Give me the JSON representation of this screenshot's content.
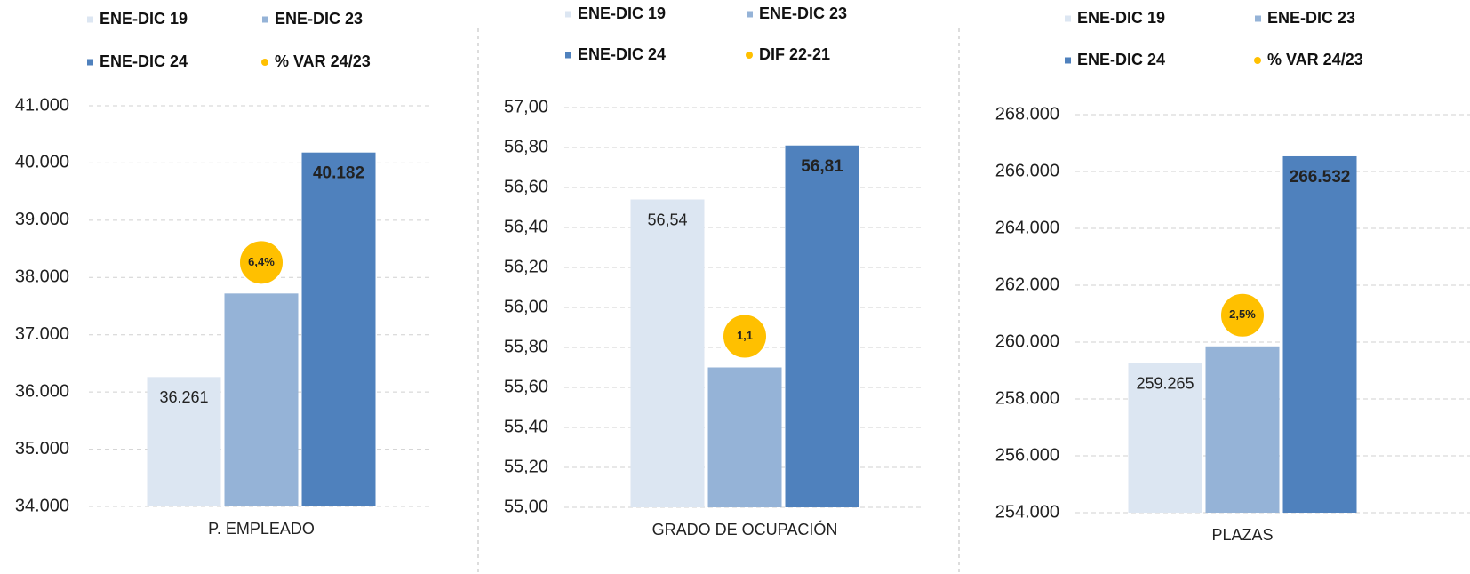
{
  "chart_data": [
    {
      "type": "bar",
      "categories": [
        "P. EMPLEADO"
      ],
      "series": [
        {
          "name": "ENE-DIC 19",
          "color": "#dce6f2",
          "values": [
            36261
          ],
          "value_labels": [
            "36.261"
          ]
        },
        {
          "name": "ENE-DIC 23",
          "color": "#95b3d7",
          "values": [
            37720
          ]
        },
        {
          "name": "ENE-DIC 24",
          "color": "#4f81bd",
          "values": [
            40182
          ],
          "value_labels": [
            "40.182"
          ]
        },
        {
          "name": "% VAR 24/23",
          "color": "#ffc000",
          "marker": "circle",
          "values": [
            6.4
          ],
          "value_labels": [
            "6,4%"
          ]
        }
      ],
      "ylim": [
        34000,
        41000
      ],
      "yticks": [
        {
          "value": 34000,
          "label": "34.000"
        },
        {
          "value": 35000,
          "label": "35.000"
        },
        {
          "value": 36000,
          "label": "36.000"
        },
        {
          "value": 37000,
          "label": "37.000"
        },
        {
          "value": 38000,
          "label": "38.000"
        },
        {
          "value": 39000,
          "label": "39.000"
        },
        {
          "value": 40000,
          "label": "40.000"
        },
        {
          "value": 41000,
          "label": "41.000"
        }
      ],
      "grid": true
    },
    {
      "type": "bar",
      "categories": [
        "GRADO DE OCUPACIÓN"
      ],
      "series": [
        {
          "name": "ENE-DIC 19",
          "color": "#dce6f2",
          "values": [
            56.54
          ],
          "value_labels": [
            "56,54"
          ]
        },
        {
          "name": "ENE-DIC 23",
          "color": "#95b3d7",
          "values": [
            55.7
          ]
        },
        {
          "name": "ENE-DIC 24",
          "color": "#4f81bd",
          "values": [
            56.81
          ],
          "value_labels": [
            "56,81"
          ]
        },
        {
          "name": "DIF 22-21",
          "color": "#ffc000",
          "marker": "circle",
          "values": [
            1.1
          ],
          "value_labels": [
            "1,1"
          ]
        }
      ],
      "ylim": [
        55,
        57
      ],
      "yticks": [
        {
          "value": 55,
          "label": "55,00"
        },
        {
          "value": 55.2,
          "label": "55,20"
        },
        {
          "value": 55.4,
          "label": "55,40"
        },
        {
          "value": 55.6,
          "label": "55,60"
        },
        {
          "value": 55.8,
          "label": "55,80"
        },
        {
          "value": 56,
          "label": "56,00"
        },
        {
          "value": 56.2,
          "label": "56,20"
        },
        {
          "value": 56.4,
          "label": "56,40"
        },
        {
          "value": 56.6,
          "label": "56,60"
        },
        {
          "value": 56.8,
          "label": "56,80"
        },
        {
          "value": 57,
          "label": "57,00"
        }
      ],
      "grid": true
    },
    {
      "type": "bar",
      "categories": [
        "PLAZAS"
      ],
      "series": [
        {
          "name": "ENE-DIC 19",
          "color": "#dce6f2",
          "values": [
            259265
          ],
          "value_labels": [
            "259.265"
          ]
        },
        {
          "name": "ENE-DIC 23",
          "color": "#95b3d7",
          "values": [
            259850
          ]
        },
        {
          "name": "ENE-DIC 24",
          "color": "#4f81bd",
          "values": [
            266532
          ],
          "value_labels": [
            "266.532"
          ]
        },
        {
          "name": "% VAR 24/23",
          "color": "#ffc000",
          "marker": "circle",
          "values": [
            2.5
          ],
          "value_labels": [
            "2,5%"
          ]
        }
      ],
      "ylim": [
        254000,
        268000
      ],
      "yticks": [
        {
          "value": 254000,
          "label": "254.000"
        },
        {
          "value": 256000,
          "label": "256.000"
        },
        {
          "value": 258000,
          "label": "258.000"
        },
        {
          "value": 260000,
          "label": "260.000"
        },
        {
          "value": 262000,
          "label": "262.000"
        },
        {
          "value": 264000,
          "label": "264.000"
        },
        {
          "value": 266000,
          "label": "266.000"
        },
        {
          "value": 268000,
          "label": "268.000"
        }
      ],
      "grid": true
    }
  ]
}
